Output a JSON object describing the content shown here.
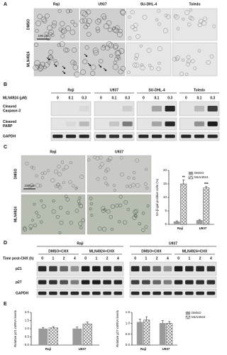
{
  "panels": {
    "a": {
      "label": "A",
      "columns": [
        "Raji",
        "U937",
        "SU-DHL-4",
        "Toledo"
      ],
      "rows": [
        "DMSO",
        "MLN4924"
      ],
      "scale_bar": "100 μm"
    },
    "b": {
      "label": "B",
      "columns": [
        "Raji",
        "U937",
        "SU-DHL-4",
        "Toledo"
      ],
      "dose_label": "MLN4924 (μM)",
      "doses": [
        "0",
        "0.1",
        "0.3"
      ],
      "rows": [
        [
          "Cleaved",
          "Caspase-3"
        ],
        [
          "Cleaved",
          "PARP"
        ],
        [
          "GAPDH"
        ]
      ]
    },
    "c": {
      "label": "C",
      "columns": [
        "Raji",
        "U937"
      ],
      "rows": [
        "DMSO",
        "MLN4924"
      ],
      "scale_bar": "100 μm"
    },
    "d": {
      "label": "D",
      "groups": [
        "Raji",
        "U937"
      ],
      "treatments": [
        "DMSO+CHX",
        "MLN4924+CHX"
      ],
      "time_label": "Time post-CHX (h)",
      "times": [
        "0",
        "1",
        "2",
        "4"
      ],
      "rows": [
        "p21",
        "p27",
        "GAPDH"
      ]
    },
    "e": {
      "label": "E"
    }
  },
  "chart_data": [
    {
      "type": "bar",
      "y_label": "SA-β-gal-positive cells (%)",
      "categories": [
        "Raji",
        "U937"
      ],
      "series": [
        {
          "name": "DMSO",
          "color": "#9a9a9a",
          "values": [
            1,
            1.5
          ],
          "errors": [
            0.3,
            0.3
          ]
        },
        {
          "name": "MLN4924",
          "color": "#444444",
          "pattern": "crosshatch",
          "values": [
            15,
            13.5
          ],
          "errors": [
            1.5,
            0.5
          ],
          "annotations": [
            "**",
            "***"
          ]
        }
      ],
      "ylim": [
        0,
        20
      ],
      "yticks": [
        0,
        5,
        10,
        15,
        20
      ],
      "legend": "upper right"
    },
    {
      "type": "bar",
      "y_label": "Relative p21 mRNA levels",
      "categories": [
        "Raji",
        "U937"
      ],
      "series": [
        {
          "name": "DMSO",
          "color": "#9a9a9a",
          "values": [
            1.0,
            1.0
          ],
          "errors": [
            0.08,
            0.1
          ]
        },
        {
          "name": "MLN4924",
          "color": "#444444",
          "pattern": "crosshatch",
          "values": [
            1.05,
            1.3
          ],
          "errors": [
            0.08,
            0.12
          ]
        }
      ],
      "ylim": [
        0,
        2
      ],
      "yticks": [
        {
          "value": 0,
          "label": "0.0"
        },
        0.5,
        {
          "value": 1,
          "label": "1.0"
        },
        1.5,
        {
          "value": 2,
          "label": "2.0"
        }
      ]
    },
    {
      "type": "bar",
      "y_label": "Relative p27 mRNA levels",
      "categories": [
        "Raji",
        "U937"
      ],
      "series": [
        {
          "name": "DMSO",
          "color": "#9a9a9a",
          "values": [
            1.05,
            1.0
          ],
          "errors": [
            0.15,
            0.12
          ]
        },
        {
          "name": "MLN4924",
          "color": "#444444",
          "pattern": "crosshatch",
          "values": [
            1.15,
            1.0
          ],
          "errors": [
            0.15,
            0.08
          ]
        }
      ],
      "ylim": [
        0,
        1.5
      ],
      "yticks": [
        {
          "value": 0,
          "label": "0.0"
        },
        0.5,
        {
          "value": 1,
          "label": "1.0"
        },
        1.5
      ],
      "legend": "right"
    }
  ]
}
